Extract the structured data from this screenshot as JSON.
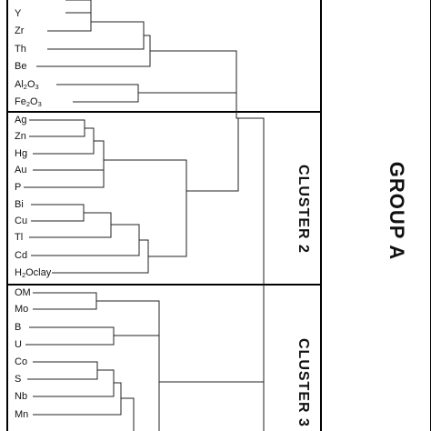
{
  "labels": {
    "y": "Y",
    "zr": "Zr",
    "th": "Th",
    "be": "Be",
    "al2o3": "Al2O3",
    "fe2o3": "Fe2O3",
    "ag": "Ag",
    "zn": "Zn",
    "hg": "Hg",
    "au": "Au",
    "p": "P",
    "bi": "Bi",
    "cu": "Cu",
    "tl": "Tl",
    "cd": "Cd",
    "h2oclay": "H2Oclay",
    "om": "OM",
    "mo": "Mo",
    "b": "B",
    "u": "U",
    "co": "Co",
    "s": "S",
    "nb": "Nb",
    "mn": "Mn"
  },
  "cluster_labels": {
    "cluster2": "CLUSTER 2",
    "cluster3": "CLUSTER 3"
  },
  "group_label": "GROUP A",
  "colors": {
    "line": "#222222",
    "box": "#000000",
    "text": "#111111"
  }
}
